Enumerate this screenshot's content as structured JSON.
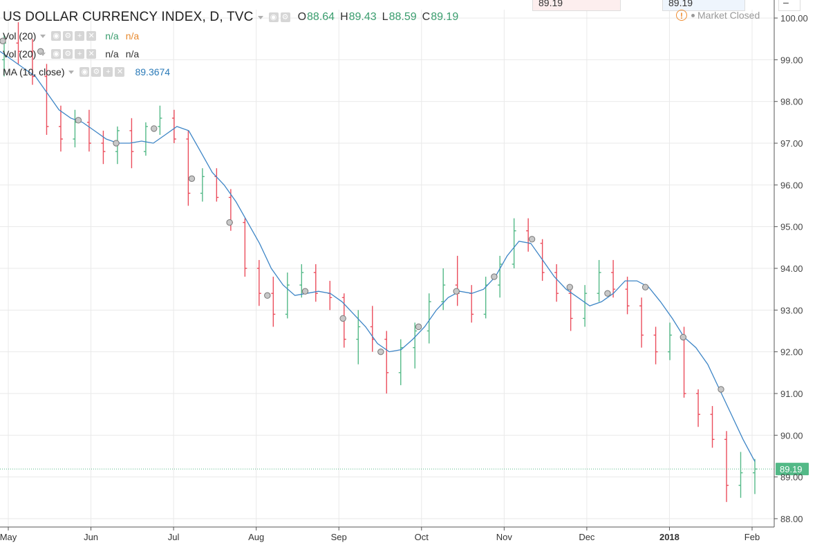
{
  "header": {
    "title": "US DOLLAR CURRENCY INDEX, D, TVC",
    "ohlc": [
      {
        "k": "O",
        "v": "88.64"
      },
      {
        "k": "H",
        "v": "89.43"
      },
      {
        "k": "L",
        "v": "88.59"
      },
      {
        "k": "C",
        "v": "89.19"
      }
    ],
    "market_status": "Market Closed",
    "top_box_left": "89.19",
    "top_box_right": "89.19",
    "top_minus": "–"
  },
  "indicators": [
    {
      "label": "Vol (20)",
      "val1": "n/a",
      "val2": "n/a",
      "style": "colored"
    },
    {
      "label": "Vol (20)",
      "val1": "n/a",
      "val2": "n/a",
      "style": "dark"
    },
    {
      "label": "MA (10, close)",
      "val1": "89.3674"
    }
  ],
  "colors": {
    "up": "#53b987",
    "down": "#eb4d5c",
    "ma": "#3d85c6",
    "grid": "#e9e9e9",
    "last": "#53b987"
  },
  "chart_data": {
    "type": "ohlc",
    "y_range": [
      87.8,
      100.2
    ],
    "y_ticks": [
      "100.00",
      "99.00",
      "98.00",
      "97.00",
      "96.00",
      "95.00",
      "94.00",
      "93.00",
      "92.00",
      "91.00",
      "90.00",
      "89.00",
      "88.00"
    ],
    "x_labels": [
      "May",
      "Jun",
      "Jul",
      "Aug",
      "Sep",
      "Oct",
      "Nov",
      "Dec",
      "2018",
      "Feb"
    ],
    "last_price": "89.19",
    "ma_series": [
      99.2,
      99.0,
      98.8,
      98.6,
      98.2,
      97.8,
      97.6,
      97.5,
      97.3,
      97.1,
      97.0,
      97.0,
      97.05,
      97.0,
      97.2,
      97.4,
      97.3,
      96.8,
      96.3,
      96.0,
      95.6,
      95.1,
      94.6,
      94.0,
      93.6,
      93.35,
      93.4,
      93.45,
      93.4,
      93.2,
      92.9,
      92.6,
      92.2,
      92.0,
      92.05,
      92.3,
      92.6,
      93.0,
      93.3,
      93.45,
      93.4,
      93.5,
      93.8,
      94.3,
      94.65,
      94.6,
      94.2,
      93.8,
      93.5,
      93.3,
      93.1,
      93.2,
      93.4,
      93.7,
      93.7,
      93.55,
      93.2,
      92.8,
      92.35,
      92.1,
      91.7,
      91.1,
      90.5,
      89.9,
      89.37
    ],
    "ma_markers": [
      99.45,
      99.2,
      97.55,
      97.0,
      97.35,
      96.15,
      95.1,
      93.35,
      93.45,
      92.8,
      92.0,
      92.6,
      93.45,
      93.8,
      94.7,
      93.55,
      93.4,
      93.55,
      92.35,
      91.1
    ],
    "bars": [
      [
        99.0,
        99.6,
        98.6,
        99.4
      ],
      [
        99.4,
        99.9,
        98.9,
        99.2
      ],
      [
        99.2,
        99.5,
        98.4,
        98.6
      ],
      [
        98.6,
        98.9,
        97.2,
        97.4
      ],
      [
        97.4,
        97.9,
        96.8,
        97.1
      ],
      [
        97.1,
        97.8,
        96.9,
        97.5
      ],
      [
        97.5,
        97.8,
        96.8,
        97.0
      ],
      [
        97.0,
        97.3,
        96.5,
        96.8
      ],
      [
        96.8,
        97.4,
        96.5,
        97.3
      ],
      [
        97.3,
        97.6,
        96.4,
        96.8
      ],
      [
        96.8,
        97.5,
        96.7,
        97.4
      ],
      [
        97.4,
        97.9,
        97.2,
        97.6
      ],
      [
        97.6,
        97.8,
        97.0,
        97.1
      ],
      [
        97.1,
        97.3,
        95.5,
        95.8
      ],
      [
        95.8,
        96.4,
        95.6,
        96.2
      ],
      [
        96.2,
        96.4,
        95.6,
        95.7
      ],
      [
        95.7,
        95.9,
        94.9,
        95.1
      ],
      [
        95.1,
        95.2,
        93.8,
        94.0
      ],
      [
        94.0,
        94.2,
        93.1,
        93.4
      ],
      [
        93.4,
        93.8,
        92.6,
        92.9
      ],
      [
        92.9,
        93.9,
        92.8,
        93.6
      ],
      [
        93.6,
        94.1,
        93.3,
        93.9
      ],
      [
        93.9,
        94.1,
        93.2,
        93.4
      ],
      [
        93.4,
        93.7,
        93.0,
        93.3
      ],
      [
        93.3,
        93.4,
        92.1,
        92.3
      ],
      [
        92.3,
        93.0,
        91.7,
        92.6
      ],
      [
        92.6,
        93.1,
        92.0,
        92.3
      ],
      [
        92.3,
        92.5,
        91.0,
        91.5
      ],
      [
        91.5,
        92.3,
        91.2,
        92.1
      ],
      [
        92.1,
        92.7,
        91.6,
        92.5
      ],
      [
        92.5,
        93.4,
        92.2,
        93.2
      ],
      [
        93.2,
        94.0,
        93.0,
        93.6
      ],
      [
        93.6,
        94.3,
        93.1,
        93.4
      ],
      [
        93.4,
        93.6,
        92.7,
        92.9
      ],
      [
        92.9,
        93.8,
        92.8,
        93.6
      ],
      [
        93.6,
        94.3,
        93.3,
        94.1
      ],
      [
        94.1,
        95.2,
        94.0,
        94.9
      ],
      [
        94.9,
        95.2,
        94.4,
        94.6
      ],
      [
        94.6,
        94.7,
        93.7,
        93.9
      ],
      [
        93.9,
        94.1,
        93.2,
        93.4
      ],
      [
        93.4,
        93.6,
        92.5,
        92.8
      ],
      [
        92.8,
        93.6,
        92.6,
        93.4
      ],
      [
        93.4,
        94.2,
        93.2,
        93.9
      ],
      [
        93.9,
        94.2,
        93.3,
        93.5
      ],
      [
        93.5,
        93.8,
        92.9,
        93.1
      ],
      [
        93.1,
        93.3,
        92.1,
        92.4
      ],
      [
        92.4,
        92.6,
        91.7,
        92.0
      ],
      [
        92.0,
        92.7,
        91.8,
        92.4
      ],
      [
        92.4,
        92.6,
        90.9,
        91.0
      ],
      [
        91.0,
        91.1,
        90.2,
        90.5
      ],
      [
        90.5,
        90.7,
        89.7,
        89.9
      ],
      [
        89.9,
        90.1,
        88.4,
        88.8
      ],
      [
        88.8,
        89.6,
        88.5,
        89.1
      ],
      [
        89.1,
        89.43,
        88.59,
        89.19
      ]
    ]
  }
}
